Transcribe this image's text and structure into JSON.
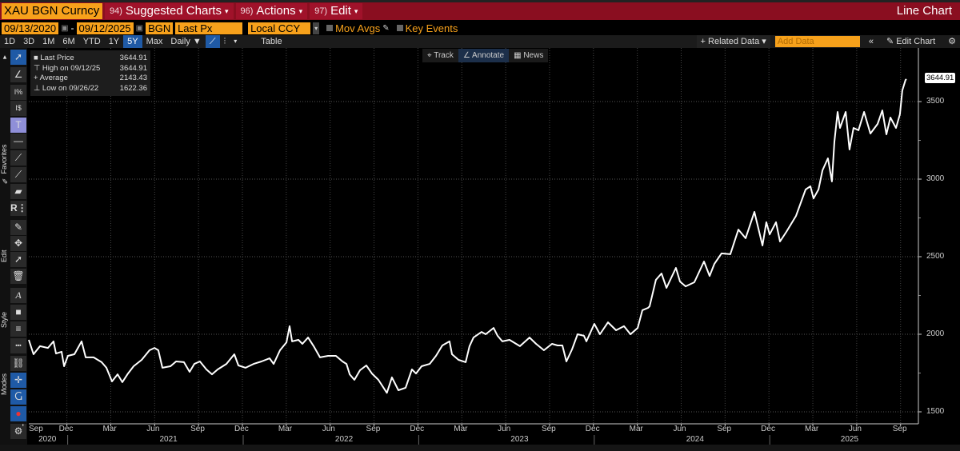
{
  "header": {
    "ticker": "XAU BGN Curncy",
    "menus": [
      {
        "num": "94)",
        "label": "Suggested Charts"
      },
      {
        "num": "96)",
        "label": "Actions"
      },
      {
        "num": "97)",
        "label": "Edit"
      }
    ],
    "chart_type": "Line Chart"
  },
  "controls": {
    "start_date": "09/13/2020",
    "dash": "-",
    "end_date": "09/12/2025",
    "source": "BGN",
    "field": "Last Px",
    "currency": "Local CCY",
    "mov_avgs": "Mov Avgs",
    "key_events": "Key Events"
  },
  "timeframes": [
    "1D",
    "3D",
    "1M",
    "6M",
    "YTD",
    "1Y",
    "5Y",
    "Max"
  ],
  "selected_timeframe": "5Y",
  "periodicity": "Daily ▼",
  "table_label": "Table",
  "right_controls": {
    "related": "+ Related Data ▾",
    "add_data_placeholder": "Add Data",
    "collapse": "«",
    "edit_chart": "✎ Edit Chart",
    "settings": "⚙"
  },
  "toolbar_groups": {
    "favorites": "✎ Favorites",
    "edit": "Edit",
    "style": "Style",
    "modes": "Modes"
  },
  "overlay_tabs": {
    "track": "⌖ Track",
    "annotate": "∠ Annotate",
    "news": "▦ News"
  },
  "legend": [
    {
      "label": "Last Price",
      "value": "3644.91"
    },
    {
      "label": "High on 09/12/25",
      "value": "3644.91"
    },
    {
      "label": "Average",
      "value": "2143.43"
    },
    {
      "label": "Low on 09/26/22",
      "value": "1622.36"
    }
  ],
  "colors": {
    "line": "#ffffff",
    "accent": "#f7a11b",
    "bar": "#8a0e20"
  },
  "chart_data": {
    "type": "line",
    "title": "XAU BGN Curncy",
    "series_name": "Last Price",
    "last_value_label": "3644.91",
    "ylim": [
      1500,
      3750
    ],
    "yticks": [
      "1500",
      "2000",
      "2500",
      "3000",
      "3500"
    ],
    "month_ticks": [
      {
        "label": "Sep",
        "t": 2020.667
      },
      {
        "label": "Dec",
        "t": 2020.917
      },
      {
        "label": "Mar",
        "t": 2021.167
      },
      {
        "label": "Jun",
        "t": 2021.417
      },
      {
        "label": "Sep",
        "t": 2021.667
      },
      {
        "label": "Dec",
        "t": 2021.917
      },
      {
        "label": "Mar",
        "t": 2022.167
      },
      {
        "label": "Jun",
        "t": 2022.417
      },
      {
        "label": "Sep",
        "t": 2022.667
      },
      {
        "label": "Dec",
        "t": 2022.917
      },
      {
        "label": "Mar",
        "t": 2023.167
      },
      {
        "label": "Jun",
        "t": 2023.417
      },
      {
        "label": "Sep",
        "t": 2023.667
      },
      {
        "label": "Dec",
        "t": 2023.917
      },
      {
        "label": "Mar",
        "t": 2024.167
      },
      {
        "label": "Jun",
        "t": 2024.417
      },
      {
        "label": "Sep",
        "t": 2024.667
      },
      {
        "label": "Dec",
        "t": 2024.917
      },
      {
        "label": "Mar",
        "t": 2025.167
      },
      {
        "label": "Jun",
        "t": 2025.417
      },
      {
        "label": "Sep",
        "t": 2025.667
      }
    ],
    "year_labels": [
      {
        "label": "2020",
        "t": 2020.81
      },
      {
        "label": "2021",
        "t": 2021.5
      },
      {
        "label": "2022",
        "t": 2022.5
      },
      {
        "label": "2023",
        "t": 2023.5
      },
      {
        "label": "2024",
        "t": 2024.5
      },
      {
        "label": "2025",
        "t": 2025.38
      }
    ],
    "points": [
      [
        2020.7,
        1964
      ],
      [
        2020.727,
        1871
      ],
      [
        2020.764,
        1923
      ],
      [
        2020.809,
        1912
      ],
      [
        2020.841,
        1954
      ],
      [
        2020.855,
        1876
      ],
      [
        2020.887,
        1887
      ],
      [
        2020.901,
        1794
      ],
      [
        2020.923,
        1861
      ],
      [
        2020.96,
        1871
      ],
      [
        2021.001,
        1954
      ],
      [
        2021.024,
        1851
      ],
      [
        2021.069,
        1851
      ],
      [
        2021.115,
        1820
      ],
      [
        2021.142,
        1784
      ],
      [
        2021.174,
        1696
      ],
      [
        2021.206,
        1742
      ],
      [
        2021.233,
        1691
      ],
      [
        2021.265,
        1747
      ],
      [
        2021.297,
        1794
      ],
      [
        2021.343,
        1835
      ],
      [
        2021.388,
        1897
      ],
      [
        2021.416,
        1912
      ],
      [
        2021.438,
        1897
      ],
      [
        2021.461,
        1784
      ],
      [
        2021.507,
        1794
      ],
      [
        2021.539,
        1825
      ],
      [
        2021.584,
        1820
      ],
      [
        2021.616,
        1758
      ],
      [
        2021.643,
        1809
      ],
      [
        2021.675,
        1825
      ],
      [
        2021.712,
        1773
      ],
      [
        2021.744,
        1742
      ],
      [
        2021.776,
        1773
      ],
      [
        2021.826,
        1809
      ],
      [
        2021.871,
        1871
      ],
      [
        2021.894,
        1799
      ],
      [
        2021.935,
        1784
      ],
      [
        2021.981,
        1809
      ],
      [
        2022.026,
        1825
      ],
      [
        2022.072,
        1845
      ],
      [
        2022.095,
        1809
      ],
      [
        2022.131,
        1897
      ],
      [
        2022.168,
        1948
      ],
      [
        2022.186,
        2052
      ],
      [
        2022.2,
        1954
      ],
      [
        2022.236,
        1964
      ],
      [
        2022.259,
        1938
      ],
      [
        2022.291,
        1979
      ],
      [
        2022.323,
        1923
      ],
      [
        2022.359,
        1851
      ],
      [
        2022.405,
        1861
      ],
      [
        2022.45,
        1861
      ],
      [
        2022.487,
        1825
      ],
      [
        2022.51,
        1809
      ],
      [
        2022.528,
        1742
      ],
      [
        2022.555,
        1706
      ],
      [
        2022.587,
        1768
      ],
      [
        2022.623,
        1799
      ],
      [
        2022.655,
        1747
      ],
      [
        2022.692,
        1706
      ],
      [
        2022.74,
        1622
      ],
      [
        2022.769,
        1722
      ],
      [
        2022.806,
        1639
      ],
      [
        2022.847,
        1655
      ],
      [
        2022.883,
        1773
      ],
      [
        2022.906,
        1747
      ],
      [
        2022.938,
        1794
      ],
      [
        2022.984,
        1809
      ],
      [
        2023.02,
        1861
      ],
      [
        2023.056,
        1928
      ],
      [
        2023.097,
        1954
      ],
      [
        2023.111,
        1871
      ],
      [
        2023.148,
        1835
      ],
      [
        2023.189,
        1820
      ],
      [
        2023.211,
        1923
      ],
      [
        2023.234,
        1979
      ],
      [
        2023.28,
        2015
      ],
      [
        2023.303,
        2000
      ],
      [
        2023.348,
        2041
      ],
      [
        2023.371,
        1990
      ],
      [
        2023.398,
        1954
      ],
      [
        2023.439,
        1964
      ],
      [
        2023.498,
        1923
      ],
      [
        2023.553,
        1979
      ],
      [
        2023.59,
        1938
      ],
      [
        2023.635,
        1897
      ],
      [
        2023.681,
        1938
      ],
      [
        2023.713,
        1928
      ],
      [
        2023.74,
        1928
      ],
      [
        2023.763,
        1825
      ],
      [
        2023.795,
        1902
      ],
      [
        2023.827,
        2000
      ],
      [
        2023.863,
        1990
      ],
      [
        2023.877,
        1954
      ],
      [
        2023.922,
        2067
      ],
      [
        2023.954,
        2000
      ],
      [
        2024.0,
        2077
      ],
      [
        2024.046,
        2026
      ],
      [
        2024.091,
        2052
      ],
      [
        2024.128,
        2000
      ],
      [
        2024.169,
        2041
      ],
      [
        2024.196,
        2155
      ],
      [
        2024.228,
        2170
      ],
      [
        2024.237,
        2180
      ],
      [
        2024.273,
        2351
      ],
      [
        2024.305,
        2392
      ],
      [
        2024.333,
        2299
      ],
      [
        2024.387,
        2428
      ],
      [
        2024.41,
        2340
      ],
      [
        2024.442,
        2309
      ],
      [
        2024.492,
        2335
      ],
      [
        2024.547,
        2469
      ],
      [
        2024.579,
        2376
      ],
      [
        2024.606,
        2454
      ],
      [
        2024.647,
        2521
      ],
      [
        2024.697,
        2516
      ],
      [
        2024.743,
        2675
      ],
      [
        2024.784,
        2619
      ],
      [
        2024.834,
        2789
      ],
      [
        2024.88,
        2572
      ],
      [
        2024.902,
        2722
      ],
      [
        2024.921,
        2644
      ],
      [
        2024.957,
        2722
      ],
      [
        2024.98,
        2598
      ],
      [
        2025.016,
        2660
      ],
      [
        2025.071,
        2763
      ],
      [
        2025.126,
        2933
      ],
      [
        2025.153,
        2954
      ],
      [
        2025.171,
        2876
      ],
      [
        2025.199,
        2933
      ],
      [
        2025.222,
        3057
      ],
      [
        2025.253,
        3134
      ],
      [
        2025.276,
        2985
      ],
      [
        2025.29,
        3242
      ],
      [
        2025.308,
        3433
      ],
      [
        2025.322,
        3330
      ],
      [
        2025.354,
        3433
      ],
      [
        2025.376,
        3191
      ],
      [
        2025.399,
        3330
      ],
      [
        2025.427,
        3315
      ],
      [
        2025.459,
        3433
      ],
      [
        2025.495,
        3294
      ],
      [
        2025.536,
        3356
      ],
      [
        2025.563,
        3443
      ],
      [
        2025.586,
        3289
      ],
      [
        2025.609,
        3397
      ],
      [
        2025.641,
        3330
      ],
      [
        2025.663,
        3418
      ],
      [
        2025.677,
        3572
      ],
      [
        2025.695,
        3639
      ],
      [
        2025.7,
        3644.91
      ]
    ]
  }
}
